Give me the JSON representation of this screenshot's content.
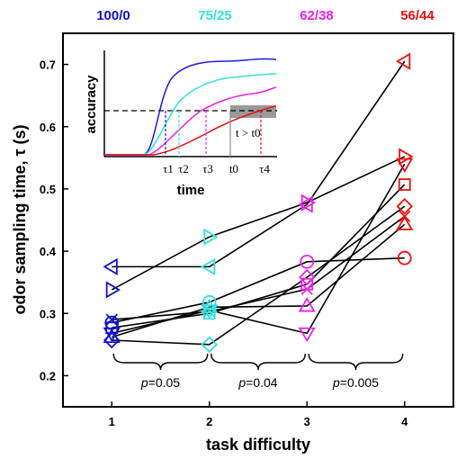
{
  "chart_data": {
    "type": "line",
    "xlabel": "task difficulty",
    "ylabel": "odor sampling time, τ (s)",
    "xlim": [
      0.5,
      4.5
    ],
    "ylim": [
      0.15,
      0.75
    ],
    "xticks": [
      "1",
      "2",
      "3",
      "4"
    ],
    "yticks": [
      "0.2",
      "0.3",
      "0.4",
      "0.5",
      "0.6",
      "0.7"
    ],
    "top_labels": [
      {
        "text": "100/0",
        "color": "#1010d0"
      },
      {
        "text": "75/25",
        "color": "#30e0e0"
      },
      {
        "text": "62/38",
        "color": "#ee20ee"
      },
      {
        "text": "56/44",
        "color": "#ee1010"
      }
    ],
    "level_colors": [
      "#1010d0",
      "#30e0e0",
      "#ee20ee",
      "#ee1010"
    ],
    "series": [
      {
        "marker": "triangle-left",
        "values": [
          0.375,
          0.375,
          0.475,
          0.705
        ]
      },
      {
        "marker": "triangle-right",
        "values": [
          0.338,
          0.423,
          0.478,
          0.552
        ]
      },
      {
        "marker": "circle",
        "values": [
          0.285,
          0.318,
          0.383,
          0.389
        ]
      },
      {
        "marker": "square",
        "values": [
          0.277,
          0.3,
          0.347,
          0.507
        ]
      },
      {
        "marker": "diamond",
        "values": [
          0.257,
          0.25,
          0.358,
          0.472
        ]
      },
      {
        "marker": "triangle-down",
        "values": [
          0.268,
          0.305,
          0.268,
          0.54
        ]
      },
      {
        "marker": "triangle-up",
        "values": [
          0.262,
          0.31,
          0.312,
          0.443
        ]
      },
      {
        "marker": "x",
        "values": [
          0.29,
          0.303,
          0.339,
          0.456
        ]
      }
    ],
    "brackets": [
      {
        "from": 1,
        "to": 2,
        "label": "p=0.05"
      },
      {
        "from": 2,
        "to": 3,
        "label": "p=0.04"
      },
      {
        "from": 3,
        "to": 4,
        "label": "p=0.005"
      }
    ],
    "inset": {
      "ylabel": "accuracy",
      "xlabel": "time",
      "tick_labels": [
        "τ1",
        "τ2",
        "τ3",
        "t0",
        "τ4"
      ],
      "annotation": "t > t0"
    }
  }
}
